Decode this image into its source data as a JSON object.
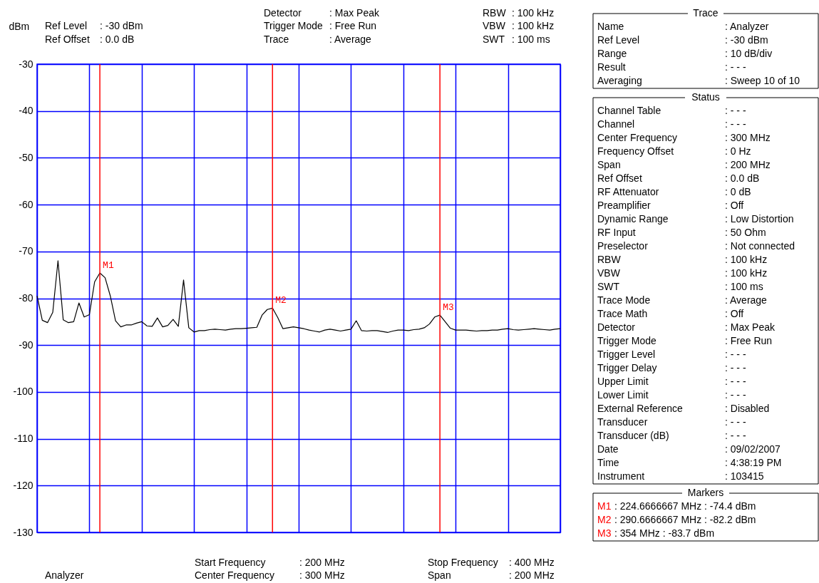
{
  "chart_data": {
    "type": "line",
    "ylabel": "dBm",
    "categories": [
      null,
      null,
      null,
      null,
      null,
      null,
      null,
      null,
      null,
      null,
      null,
      null,
      null,
      null,
      null,
      null,
      null,
      null,
      null,
      null,
      null,
      null,
      null,
      null,
      null,
      null,
      null,
      null,
      null,
      null,
      null,
      null,
      null,
      null,
      null,
      null,
      null,
      null,
      null,
      null,
      null,
      null,
      null,
      null,
      null,
      null,
      null,
      null,
      null,
      null,
      null,
      null,
      null,
      null,
      null,
      null,
      null,
      null,
      null,
      null,
      null,
      null,
      null,
      null,
      null,
      null,
      null,
      null,
      null,
      null,
      null,
      null,
      null,
      null,
      null,
      null,
      null,
      null,
      null,
      null,
      null,
      null,
      null,
      null,
      null,
      null,
      null,
      null,
      null,
      null,
      null,
      null,
      null,
      null,
      null,
      null,
      null,
      null,
      null,
      null,
      null
    ],
    "series": [
      {
        "color": "#000000",
        "values": [
          -79.5,
          -84.7,
          -85.2,
          -83.0,
          -72.0,
          -84.6,
          -85.2,
          -85.0,
          -81.0,
          -84.0,
          -83.5,
          -76.5,
          -74.6,
          -75.6,
          -79.5,
          -84.8,
          -86.1,
          -85.7,
          -85.7,
          -85.3,
          -85.0,
          -85.9,
          -86.0,
          -84.2,
          -86.1,
          -85.8,
          -84.5,
          -86.0,
          -76.1,
          -86.3,
          -87.2,
          -86.9,
          -86.9,
          -86.7,
          -86.6,
          -86.7,
          -86.8,
          -86.6,
          -86.5,
          -86.5,
          -86.4,
          -86.3,
          -86.2,
          -83.6,
          -82.4,
          -82.1,
          -84.1,
          -86.5,
          -86.3,
          -86.1,
          -86.3,
          -86.5,
          -86.8,
          -87.0,
          -87.2,
          -86.8,
          -86.6,
          -86.8,
          -87.0,
          -86.8,
          -86.6,
          -84.8,
          -86.9,
          -87.0,
          -86.9,
          -86.9,
          -87.1,
          -87.3,
          -87.0,
          -86.8,
          -86.8,
          -86.9,
          -86.7,
          -86.6,
          -86.3,
          -85.5,
          -84.0,
          -83.6,
          -85.0,
          -86.4,
          -86.8,
          -86.8,
          -86.8,
          -86.9,
          -87.0,
          -86.9,
          -86.9,
          -86.8,
          -86.8,
          -86.6,
          -86.5,
          -86.7,
          -86.8,
          -86.7,
          -86.6,
          -86.5,
          -86.6,
          -86.7,
          -86.8,
          -86.6,
          -86.5
        ],
        "value_labels": [
          null,
          null,
          null,
          null,
          null,
          null,
          null,
          null,
          null,
          null,
          null,
          null,
          "M1",
          null,
          null,
          null,
          null,
          null,
          null,
          null,
          null,
          null,
          null,
          null,
          null,
          null,
          null,
          null,
          null,
          null,
          null,
          null,
          null,
          null,
          null,
          null,
          null,
          null,
          null,
          null,
          null,
          null,
          null,
          null,
          null,
          "M2",
          null,
          null,
          null,
          null,
          null,
          null,
          null,
          null,
          null,
          null,
          null,
          null,
          null,
          null,
          null,
          null,
          null,
          null,
          null,
          null,
          null,
          null,
          null,
          null,
          null,
          null,
          null,
          null,
          null,
          null,
          null,
          "M3",
          null,
          null,
          null,
          null,
          null,
          null,
          null,
          null,
          null,
          null,
          null,
          null,
          null,
          null,
          null,
          null,
          null,
          null,
          null,
          null,
          null,
          null,
          null
        ]
      }
    ],
    "ylim": [
      -130,
      -30
    ],
    "yticks": [
      -30,
      -40,
      -50,
      -60,
      -70,
      -80,
      -90,
      -100,
      -110,
      -120,
      -130
    ],
    "tick_labels": "y",
    "grid": true,
    "legend": false,
    "marker": "none",
    "line_style": "solid",
    "annotations": [
      "Ref Level : -30 dBm",
      "Ref Offset : 0.0 dB",
      "Detector : Max Peak",
      "Trigger Mode : Free Run",
      "Trace : Average",
      "RBW : 100 kHz",
      "VBW : 100 kHz",
      "SWT : 100 ms",
      "Analyzer",
      "Start Frequency : 200 MHz",
      "Center Frequency : 300 MHz",
      "Stop Frequency : 400 MHz",
      "Span : 200 MHz",
      "Trace",
      "Name : Analyzer",
      "Ref Level : -30 dBm",
      "Range : 10 dB/div",
      "Result : - - -",
      "Averaging : Sweep 10 of 10",
      "Status",
      "Channel Table : - - -",
      "Channel : - - -",
      "Center Frequency : 300 MHz",
      "Frequency Offset : 0 Hz",
      "Span : 200 MHz",
      "Ref Offset : 0.0 dB",
      "RF Attenuator : 0 dB",
      "Preamplifier : Off",
      "Dynamic Range : Low Distortion",
      "RF Input : 50 Ohm",
      "Preselector : Not connected",
      "RBW : 100 kHz",
      "VBW : 100 kHz",
      "SWT : 100 ms",
      "Trace Mode : Average",
      "Trace Math : Off",
      "Detector : Max Peak",
      "Trigger Mode : Free Run",
      "Trigger Level : - - -",
      "Trigger Delay : - - -",
      "Upper Limit : - - -",
      "Lower Limit : - - -",
      "External Reference : Disabled",
      "Transducer : - - -",
      "Transducer (dB) : - - -",
      "Date : 09/02/2007",
      "Time : 4:38:19 PM",
      "Instrument : 103415",
      "Markers",
      "M1 : 224.6666667 MHz : -74.4 dBm",
      "M2 : 290.6666667 MHz : -82.2 dBm",
      "M3 : 354 MHz : -83.7 dBm"
    ]
  }
}
